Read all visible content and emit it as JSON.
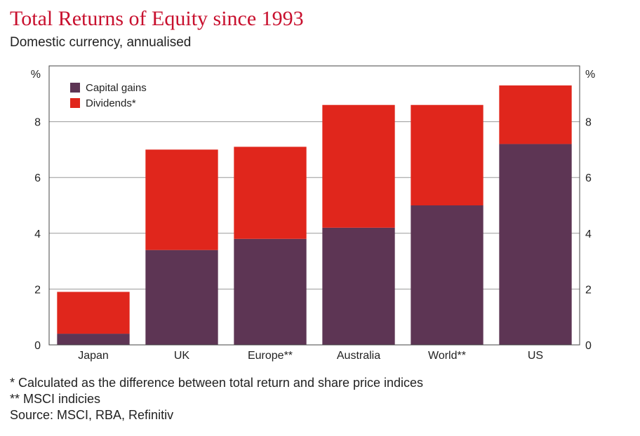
{
  "header": {
    "title": "Total Returns of Equity since 1993",
    "subtitle": "Domestic currency, annualised"
  },
  "footnotes": [
    "* Calculated as the difference between total return and share price indices",
    "** MSCI indicies",
    "Source: MSCI, RBA, Refinitiv"
  ],
  "chart_data": {
    "type": "bar",
    "stacked": true,
    "categories": [
      "Japan",
      "UK",
      "Europe**",
      "Australia",
      "World**",
      "US"
    ],
    "series": [
      {
        "name": "Capital gains",
        "values": [
          0.4,
          3.4,
          3.8,
          4.2,
          5.0,
          7.2
        ],
        "color": "#5d3554"
      },
      {
        "name": "Dividends*",
        "values": [
          1.5,
          3.6,
          3.3,
          4.4,
          3.6,
          2.1
        ],
        "color": "#e0261c"
      }
    ],
    "ylim": [
      0,
      10
    ],
    "yticks": [
      0,
      2,
      4,
      6,
      8
    ],
    "y_unit_label_left": "%",
    "y_unit_label_right": "%",
    "grid": true,
    "legend_position": "top-left"
  }
}
